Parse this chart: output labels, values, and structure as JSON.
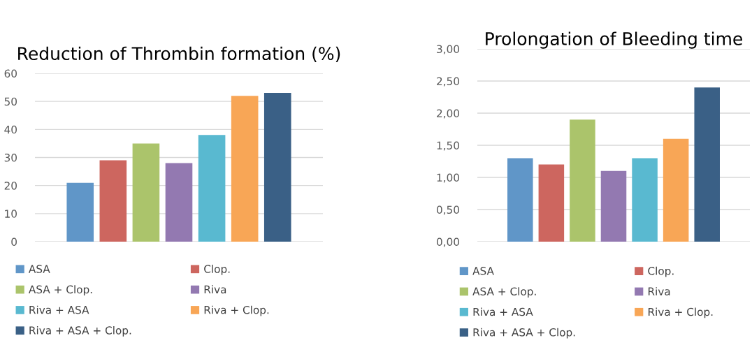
{
  "chart_data": [
    {
      "type": "bar",
      "title": "Reduction of Thrombin formation (%)",
      "categories": [
        null
      ],
      "ylim": [
        0,
        60
      ],
      "yticks": [
        0,
        10,
        20,
        30,
        40,
        50,
        60
      ],
      "grid": "y",
      "legend": "bottom",
      "tick_labels": "y",
      "series": [
        {
          "name": "ASA",
          "color": "#6096c8",
          "values": [
            21
          ]
        },
        {
          "name": "Clop.",
          "color": "#cd665f",
          "values": [
            29
          ]
        },
        {
          "name": "ASA + Clop.",
          "color": "#abc46b",
          "values": [
            35
          ]
        },
        {
          "name": "Riva",
          "color": "#9379b1",
          "values": [
            28
          ]
        },
        {
          "name": "Riva + ASA",
          "color": "#59b9d0",
          "values": [
            38
          ]
        },
        {
          "name": "Riva + Clop.",
          "color": "#f8a656",
          "values": [
            52
          ]
        },
        {
          "name": "Riva + ASA + Clop.",
          "color": "#3a6086",
          "values": [
            53
          ]
        }
      ]
    },
    {
      "type": "bar",
      "title": "Prolongation of Bleeding time",
      "categories": [
        null
      ],
      "ylim": [
        0,
        3
      ],
      "yticks": [
        {
          "value": 0,
          "label": "0,00"
        },
        {
          "value": 0.5,
          "label": "0,50"
        },
        {
          "value": 1,
          "label": "1,00"
        },
        {
          "value": 1.5,
          "label": "1,50"
        },
        {
          "value": 2,
          "label": "2,00"
        },
        {
          "value": 2.5,
          "label": "2,50"
        },
        {
          "value": 3,
          "label": "3,00"
        }
      ],
      "grid": "y",
      "legend": "bottom",
      "tick_labels": "y",
      "series": [
        {
          "name": "ASA",
          "color": "#6096c8",
          "values": [
            1.3
          ]
        },
        {
          "name": "Clop.",
          "color": "#cd665f",
          "values": [
            1.2
          ]
        },
        {
          "name": "ASA + Clop.",
          "color": "#abc46b",
          "values": [
            1.9
          ]
        },
        {
          "name": "Riva",
          "color": "#9379b1",
          "values": [
            1.1
          ]
        },
        {
          "name": "Riva + ASA",
          "color": "#59b9d0",
          "values": [
            1.3
          ]
        },
        {
          "name": "Riva + Clop.",
          "color": "#f8a656",
          "values": [
            1.6
          ]
        },
        {
          "name": "Riva + ASA + Clop.",
          "color": "#3a6086",
          "values": [
            2.4
          ]
        }
      ]
    }
  ]
}
